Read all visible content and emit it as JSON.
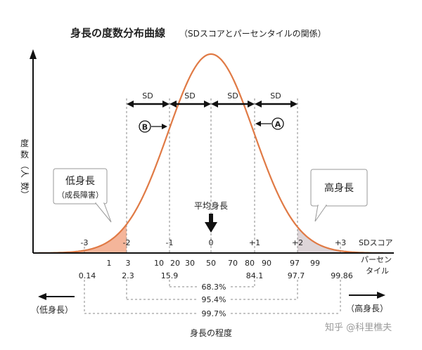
{
  "title": {
    "main": "身長の度数分布曲線",
    "sub": "（SDスコアとパーセンタイルの関係）"
  },
  "y_axis_label": [
    "度",
    "数",
    "（人",
    "数）"
  ],
  "sd_axis": {
    "ticks": [
      "-3",
      "-2",
      "-1",
      "0",
      "+1",
      "+2",
      "+3"
    ],
    "label": "SDスコア"
  },
  "percentile_axis": {
    "row1": [
      "1",
      "3",
      "10",
      "20",
      "30",
      "50",
      "70",
      "80",
      "90",
      "97",
      "99"
    ],
    "row2": [
      "0.14",
      "2.3",
      "15.9",
      "84.1",
      "97.7",
      "99.86"
    ],
    "label_line1": "パーセン",
    "label_line2": "タイル"
  },
  "sd_band_label": "SD",
  "markers": {
    "a": "A",
    "b": "B"
  },
  "mean_label": "平均身長",
  "bubbles": {
    "short": {
      "title": "低身長",
      "sub": "（成長障害）"
    },
    "tall": {
      "title": "高身長"
    }
  },
  "ranges": {
    "r1": "68.3%",
    "r2": "95.4%",
    "r3": "99.7%"
  },
  "direction": {
    "short": "（低身長）",
    "tall": "（高身長）"
  },
  "x_axis_title": "身長の程度",
  "watermark": "知乎 @科里樵夫",
  "colors": {
    "curve": "#e07a45",
    "low_fill": "#f4b59a",
    "high_fill": "#ddd5d8",
    "axis": "#111111",
    "dash": "#888888"
  }
}
